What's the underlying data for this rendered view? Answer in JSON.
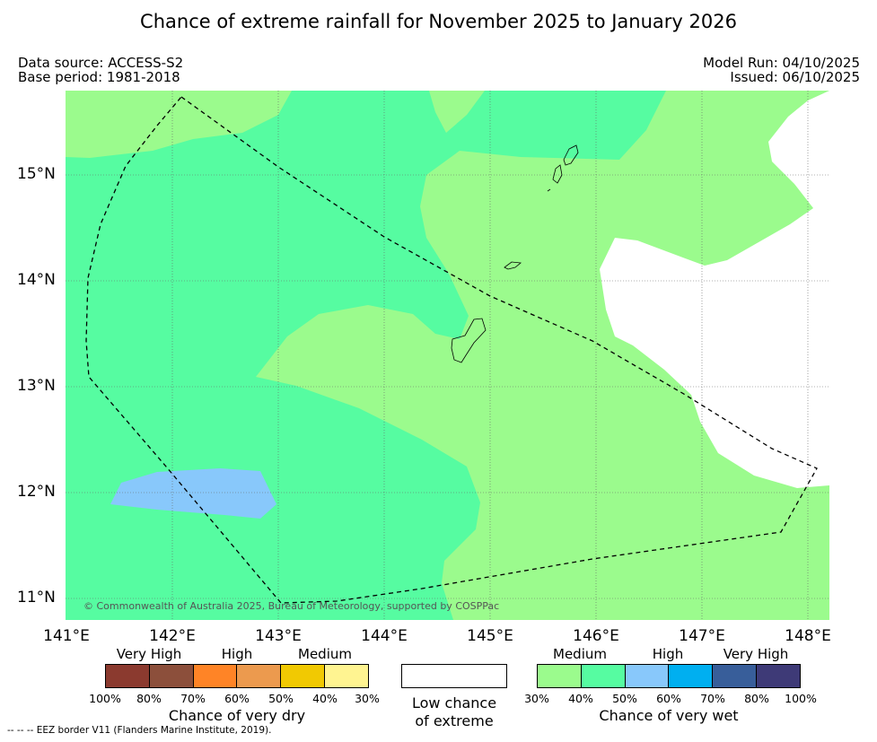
{
  "title": "Chance of extreme rainfall for November 2025 to January 2026",
  "data_source": "Data source: ACCESS-S2",
  "base_period": "Base period: 1981-2018",
  "model_run": "Model Run: 04/10/2025",
  "issued": "Issued: 06/10/2025",
  "map": {
    "lat_labels": [
      "15°N",
      "14°N",
      "13°N",
      "12°N",
      "11°N"
    ],
    "lon_labels": [
      "141°E",
      "142°E",
      "143°E",
      "144°E",
      "145°E",
      "146°E",
      "147°E",
      "148°E"
    ],
    "copyright": "© Commonwealth of Australia 2025, Bureau of Meteorology, supported by COSPPac",
    "eez_style": "dashed",
    "colors": {
      "medium_wet": "#9bfb8d",
      "medium_high_wet": "#56fca1",
      "high_wet": "#88c8fb",
      "low_chance": "#ffffff"
    }
  },
  "legend": {
    "dry": {
      "words": [
        "Very High",
        "High",
        "Medium"
      ],
      "colors": [
        "#8b3a2f",
        "#8c4f3b",
        "#ff8426",
        "#ec9a4e",
        "#f1c902",
        "#fff491"
      ],
      "ticks": [
        "100%",
        "80%",
        "70%",
        "60%",
        "50%",
        "40%",
        "30%"
      ],
      "title": "Chance of very dry"
    },
    "low": {
      "line1": "Low chance",
      "line2": "of extreme",
      "color": "#ffffff"
    },
    "wet": {
      "words": [
        "Medium",
        "High",
        "Very High"
      ],
      "colors": [
        "#9bfb8d",
        "#56fca1",
        "#88c8fb",
        "#00aff0",
        "#385e9a",
        "#3e3a77"
      ],
      "ticks": [
        "30%",
        "40%",
        "50%",
        "60%",
        "70%",
        "80%",
        "100%"
      ],
      "title": "Chance of very wet"
    }
  },
  "footnote": "--  --  -- EEZ border V11 (Flanders Marine Institute, 2019)."
}
